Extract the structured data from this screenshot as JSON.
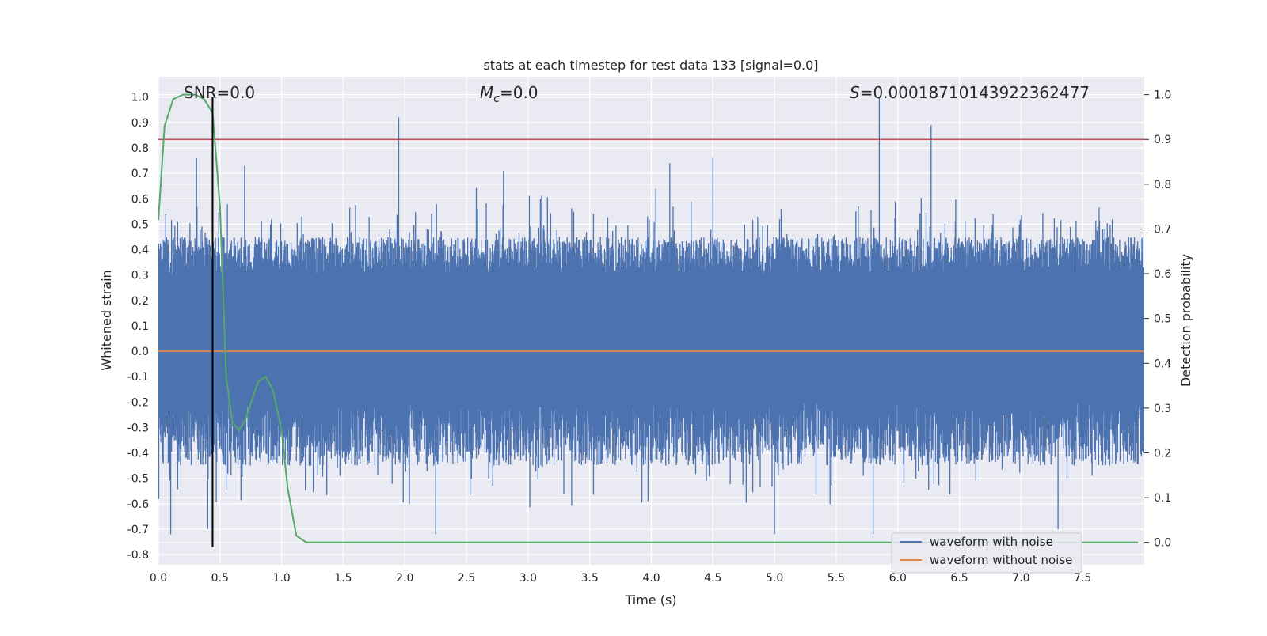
{
  "chart_data": {
    "type": "line",
    "title": "stats at each timestep for test data 133 [signal=0.0]",
    "xlabel": "Time (s)",
    "ylabel": "Whitened strain",
    "y2label": "Detection probability",
    "xlim": [
      0.0,
      8.0
    ],
    "ylim": [
      -0.84,
      1.08
    ],
    "y2lim": [
      -0.05,
      1.04
    ],
    "x_ticks": [
      "0.0",
      "0.5",
      "1.0",
      "1.5",
      "2.0",
      "2.5",
      "3.0",
      "3.5",
      "4.0",
      "4.5",
      "5.0",
      "5.5",
      "6.0",
      "6.5",
      "7.0",
      "7.5"
    ],
    "y_ticks": [
      "1.0",
      "0.9",
      "0.8",
      "0.7",
      "0.6",
      "0.5",
      "0.4",
      "0.3",
      "0.2",
      "0.1",
      "0.0",
      "-0.1",
      "-0.2",
      "-0.3",
      "-0.4",
      "-0.5",
      "-0.6",
      "-0.7",
      "-0.8"
    ],
    "y2_ticks": [
      "1.0",
      "0.9",
      "0.8",
      "0.7",
      "0.6",
      "0.5",
      "0.4",
      "0.3",
      "0.2",
      "0.1",
      "0.0"
    ],
    "annotations": {
      "snr": "SNR=0.0",
      "mc_symbol": "M",
      "mc_sub": "c",
      "mc_value": "=0.0",
      "s_symbol": "S",
      "s_value": "=0.00018710143922362477"
    },
    "legend": {
      "position": "lower-right",
      "entries": [
        "waveform with noise",
        "waveform without noise"
      ]
    },
    "grid": true,
    "colors": {
      "noise": "#4c72b0",
      "clean": "#dd8452",
      "probability": "#55a868",
      "threshold": "#c44e52",
      "marker": "#000000",
      "background": "#eaeaf2"
    },
    "series": [
      {
        "name": "waveform with noise",
        "envelope_description_values": {
          "typical_upper": [
            0.3,
            0.45
          ],
          "typical_lower": [
            -0.45,
            -0.2
          ],
          "spikes": [
            {
              "x": 0.31,
              "y": 0.76
            },
            {
              "x": 0.7,
              "y": 0.73
            },
            {
              "x": 1.95,
              "y": 0.92
            },
            {
              "x": 2.8,
              "y": 0.71
            },
            {
              "x": 4.15,
              "y": 0.74
            },
            {
              "x": 4.5,
              "y": 0.76
            },
            {
              "x": 5.85,
              "y": 1.0
            },
            {
              "x": 6.27,
              "y": 0.89
            },
            {
              "x": 0.1,
              "y": -0.72
            },
            {
              "x": 0.4,
              "y": -0.7
            },
            {
              "x": 2.25,
              "y": -0.72
            },
            {
              "x": 5.0,
              "y": -0.72
            },
            {
              "x": 5.8,
              "y": -0.72
            },
            {
              "x": 7.3,
              "y": -0.7
            }
          ]
        }
      },
      {
        "name": "waveform without noise",
        "x": [
          0.0,
          8.0
        ],
        "y": [
          0.0,
          0.0
        ]
      },
      {
        "name": "detection probability",
        "axis": "right",
        "x": [
          0.0,
          0.05,
          0.12,
          0.2,
          0.3,
          0.37,
          0.44,
          0.5,
          0.55,
          0.6,
          0.65,
          0.7,
          0.75,
          0.81,
          0.87,
          0.93,
          1.0,
          1.05,
          1.12,
          1.2,
          1.5,
          2.0,
          3.0,
          4.0,
          5.0,
          6.0,
          7.0,
          7.95
        ],
        "y": [
          0.72,
          0.93,
          0.99,
          1.0,
          1.0,
          0.99,
          0.96,
          0.75,
          0.37,
          0.27,
          0.25,
          0.27,
          0.31,
          0.36,
          0.37,
          0.34,
          0.25,
          0.12,
          0.015,
          0.0,
          0.0,
          0.0,
          0.0,
          0.0,
          0.0,
          0.0,
          0.0,
          0.0
        ]
      },
      {
        "name": "detection threshold",
        "axis": "right",
        "x": [
          0.0,
          8.0
        ],
        "y": [
          0.9,
          0.9
        ]
      },
      {
        "name": "marker",
        "x": [
          0.44,
          0.44
        ],
        "y": [
          1.0,
          -0.77
        ]
      }
    ]
  }
}
